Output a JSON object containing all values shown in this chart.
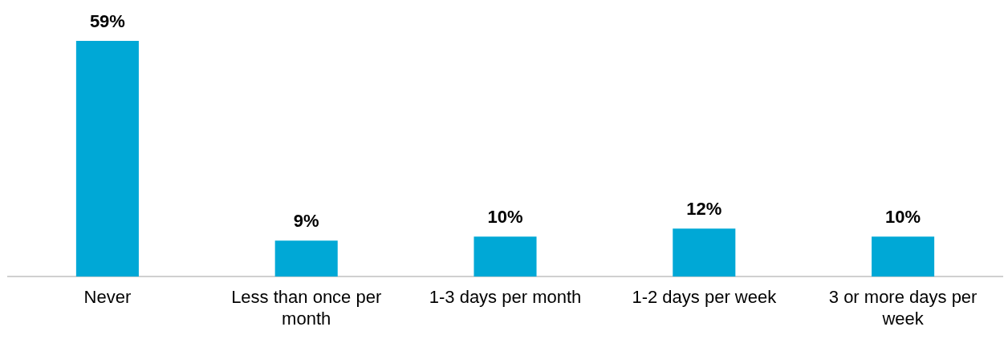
{
  "chart_data": {
    "type": "bar",
    "categories": [
      "Never",
      "Less than once per month",
      "1-3 days per month",
      "1-2 days per week",
      "3 or more days per week"
    ],
    "values": [
      59,
      9,
      10,
      12,
      10
    ],
    "color": "#00a8d6",
    "value_labels": [
      "59%",
      "9%",
      "10%",
      "12%",
      "10%"
    ],
    "grid": false,
    "legend": false,
    "tick_labels": "x"
  }
}
